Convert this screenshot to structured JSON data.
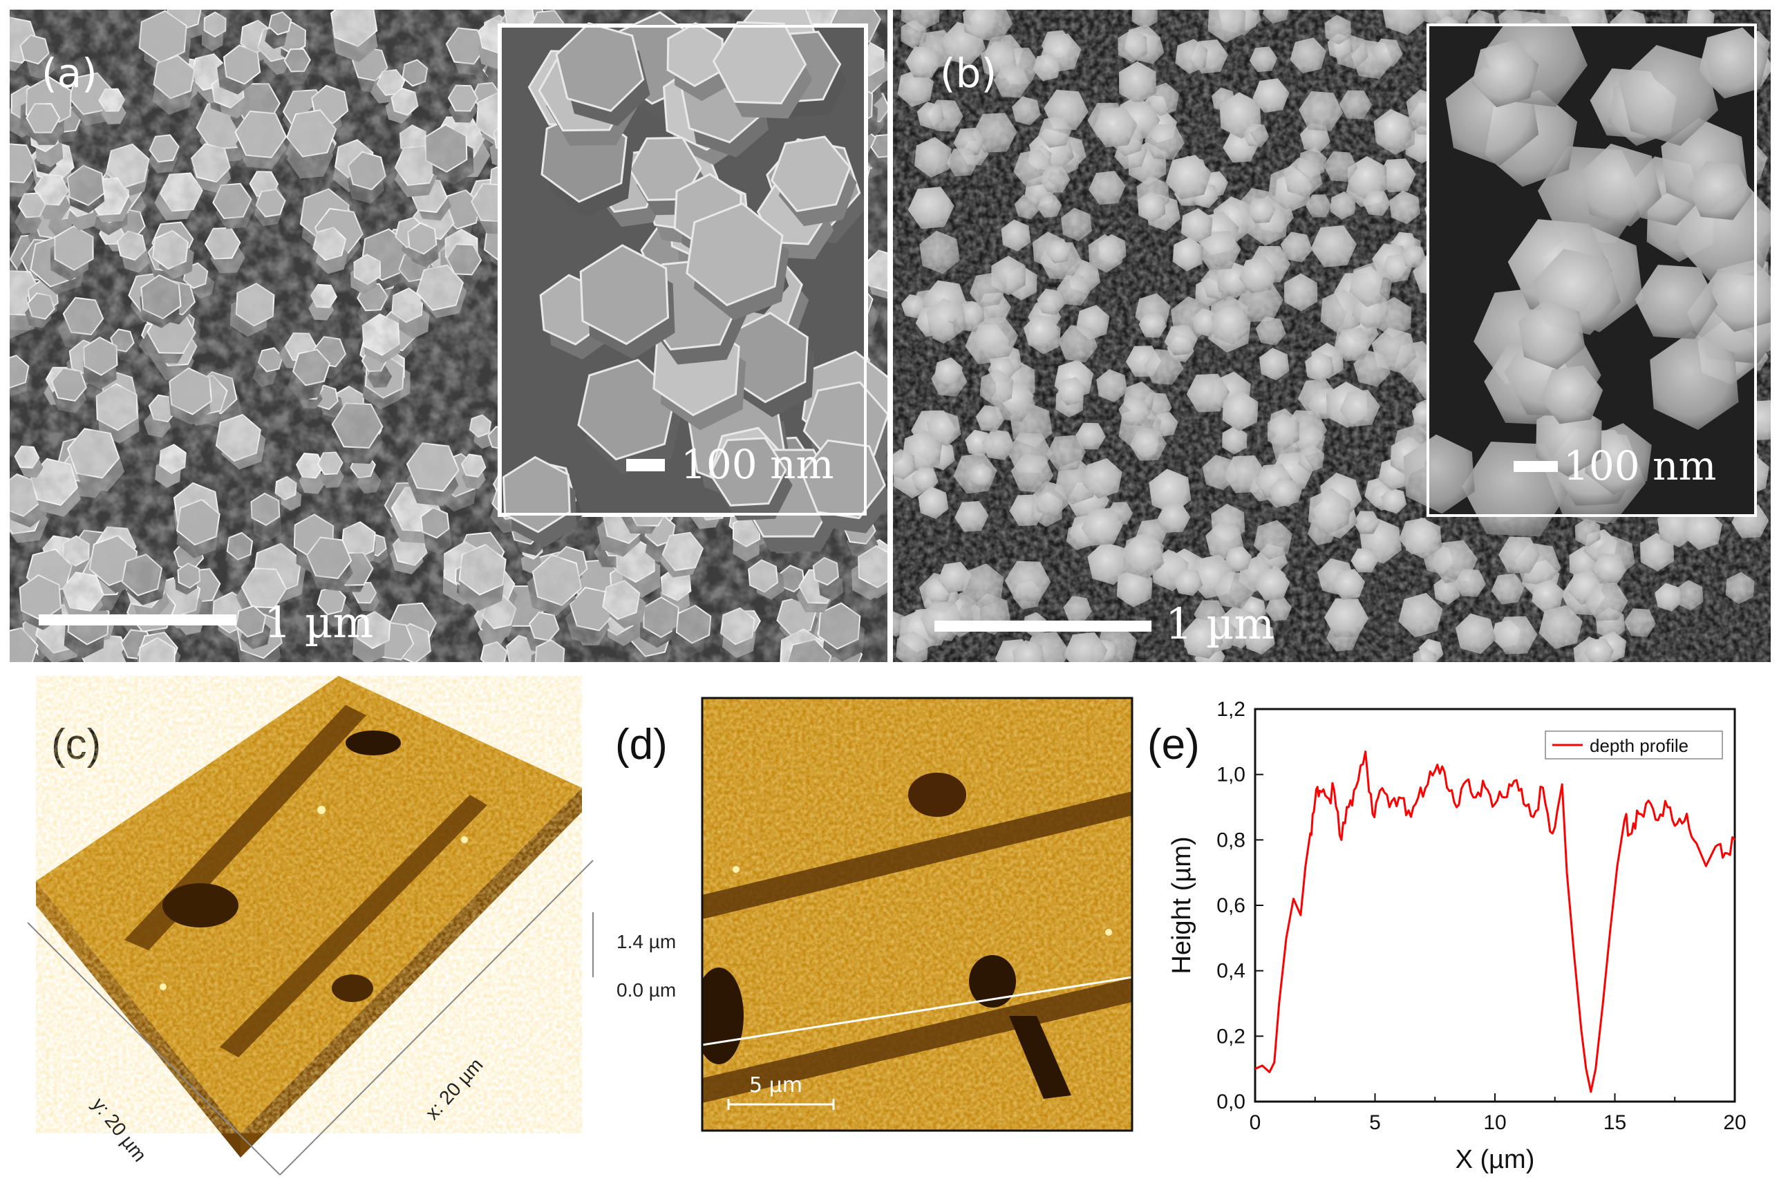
{
  "panels": {
    "a": {
      "label": "(a)",
      "scale_main": "1 µm",
      "scale_inset": "100 nm"
    },
    "b": {
      "label": "(b)",
      "scale_main": "1 µm",
      "scale_inset": "100 nm"
    },
    "c": {
      "label": "(c)",
      "z_top": "1.4 µm",
      "z_bottom": "0.0 µm",
      "y_axis": "y: 20 µm",
      "x_axis": "x: 20 µm"
    },
    "d": {
      "label": "(d)",
      "scale": "5 µm"
    },
    "e": {
      "label": "(e)"
    }
  },
  "colors": {
    "afm_base": "#c48a12",
    "afm_dark": "#5a3206",
    "afm_light": "#e8b23a",
    "profile_line": "#ff0000"
  },
  "chart_data": {
    "type": "line",
    "xlabel": "X (µm)",
    "ylabel": "Height (µm)",
    "xlim": [
      0,
      20
    ],
    "ylim": [
      0,
      1.2
    ],
    "x_ticks": [
      "0",
      "5",
      "10",
      "15",
      "20"
    ],
    "y_ticks": [
      "0,0",
      "0,2",
      "0,4",
      "0,6",
      "0,8",
      "1,0",
      "1,2"
    ],
    "legend_position": "top-right",
    "series": [
      {
        "name": "depth profile",
        "x": [
          0,
          0.3,
          0.6,
          0.8,
          1.0,
          1.3,
          1.6,
          1.9,
          2.1,
          2.3,
          2.5,
          2.7,
          3.0,
          3.3,
          3.6,
          3.9,
          4.2,
          4.6,
          4.9,
          5.2,
          5.6,
          6.0,
          6.4,
          6.8,
          7.2,
          7.6,
          8.0,
          8.4,
          8.8,
          9.2,
          9.6,
          10.0,
          10.4,
          10.8,
          11.2,
          11.6,
          12.0,
          12.4,
          12.8,
          13.0,
          13.3,
          13.6,
          13.8,
          14.0,
          14.2,
          14.5,
          14.8,
          15.1,
          15.4,
          15.7,
          16.0,
          16.4,
          16.8,
          17.2,
          17.6,
          18.0,
          18.4,
          18.8,
          19.2,
          19.6,
          20.0
        ],
        "y": [
          0.1,
          0.11,
          0.09,
          0.12,
          0.3,
          0.5,
          0.62,
          0.57,
          0.72,
          0.82,
          0.92,
          0.95,
          0.93,
          0.95,
          0.8,
          0.9,
          0.96,
          1.07,
          0.88,
          0.95,
          0.9,
          0.93,
          0.89,
          0.93,
          0.97,
          1.03,
          0.96,
          0.9,
          0.98,
          0.93,
          0.96,
          0.91,
          0.93,
          0.98,
          0.91,
          0.87,
          0.96,
          0.82,
          0.97,
          0.7,
          0.45,
          0.22,
          0.1,
          0.03,
          0.1,
          0.3,
          0.52,
          0.72,
          0.86,
          0.82,
          0.88,
          0.92,
          0.86,
          0.9,
          0.85,
          0.88,
          0.79,
          0.72,
          0.78,
          0.76,
          0.8
        ]
      }
    ]
  }
}
